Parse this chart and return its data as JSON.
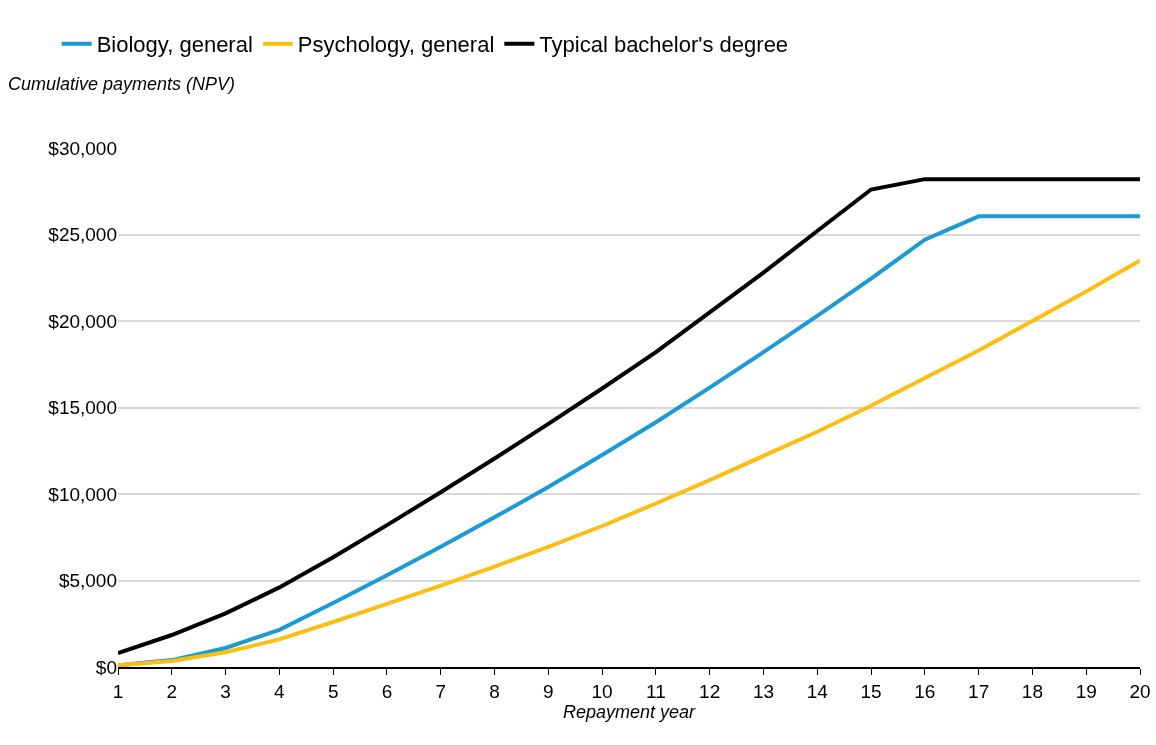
{
  "chart_data": {
    "type": "line",
    "xlabel": "Repayment year",
    "ylabel": "Cumulative payments (NPV)",
    "x": [
      1,
      2,
      3,
      4,
      5,
      6,
      7,
      8,
      9,
      10,
      11,
      12,
      13,
      14,
      15,
      16,
      17,
      18,
      19,
      20
    ],
    "series": [
      {
        "name": "Biology, general",
        "color": "#1b9ad6",
        "values": [
          100,
          400,
          1100,
          2150,
          3700,
          5300,
          6950,
          8650,
          10400,
          12250,
          14150,
          16150,
          18200,
          20300,
          22450,
          24700,
          26050,
          26050,
          26050,
          26050
        ]
      },
      {
        "name": "Psychology, general",
        "color": "#fbbf14",
        "values": [
          100,
          350,
          850,
          1600,
          2600,
          3650,
          4700,
          5800,
          6950,
          8150,
          9450,
          10800,
          12200,
          13600,
          15100,
          16700,
          18300,
          20000,
          21700,
          23500
        ]
      },
      {
        "name": "Typical bachelor's degree",
        "color": "#000000",
        "values": [
          800,
          1850,
          3100,
          4600,
          6350,
          8200,
          10100,
          12050,
          14050,
          16100,
          18200,
          20500,
          22800,
          25200,
          27600,
          28200,
          28200,
          28200,
          28200,
          28200
        ]
      }
    ],
    "xlim": [
      1,
      20
    ],
    "xticks": [
      1,
      2,
      3,
      4,
      5,
      6,
      7,
      8,
      9,
      10,
      11,
      12,
      13,
      14,
      15,
      16,
      17,
      18,
      19,
      20
    ],
    "ylim": [
      0,
      30000
    ],
    "yticks": [
      {
        "value": 0,
        "label": "$0"
      },
      {
        "value": 5000,
        "label": "$5,000"
      },
      {
        "value": 10000,
        "label": "$10,000"
      },
      {
        "value": 15000,
        "label": "$15,000"
      },
      {
        "value": 20000,
        "label": "$20,000"
      },
      {
        "value": 25000,
        "label": "$25,000"
      },
      {
        "value": 30000,
        "label": "$30,000"
      }
    ],
    "grid": "y",
    "legend": "top left",
    "marker": "none",
    "line_style": "solid"
  }
}
